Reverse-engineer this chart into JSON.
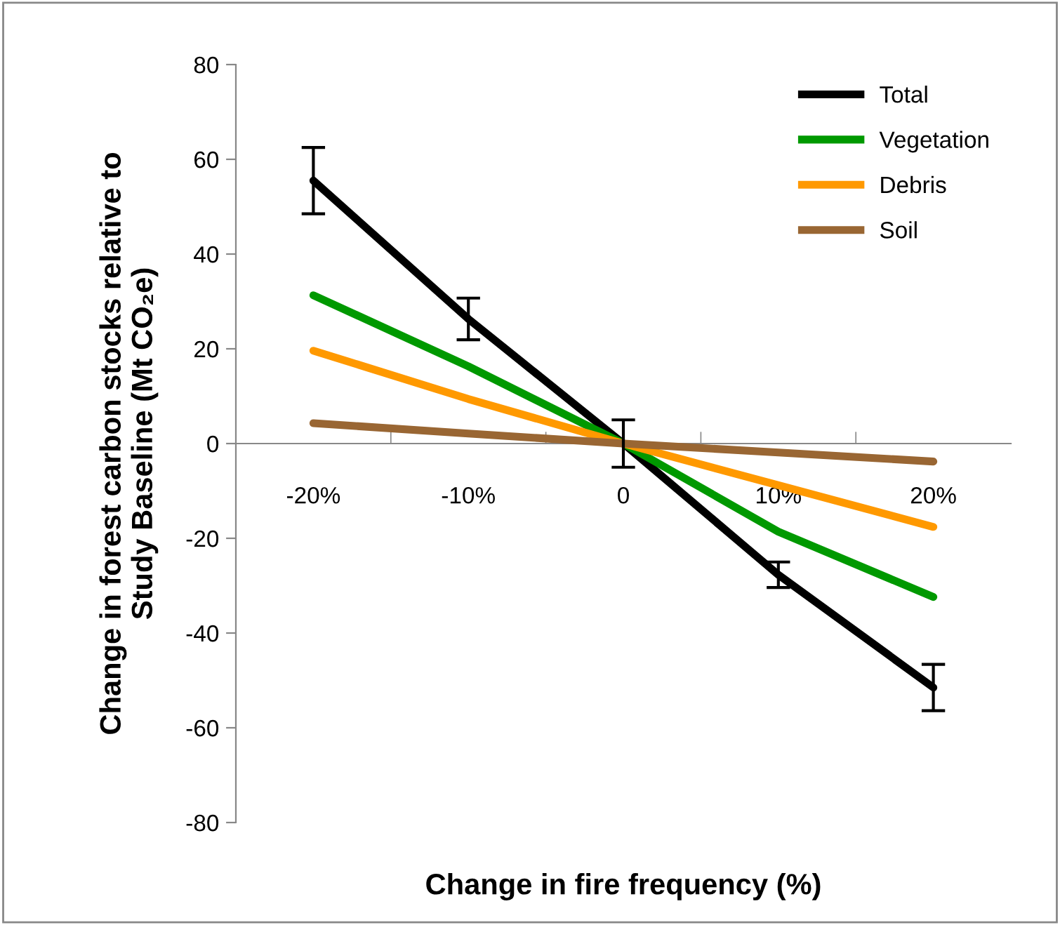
{
  "chart_data": {
    "type": "line",
    "xlabel": "Change in fire frequency (%)",
    "ylabel": "Change in forest carbon stocks relative to\nStudy Baseline (Mt CO₂e)",
    "categories": [
      "-20%",
      "-10%",
      "0",
      "10%",
      "20%"
    ],
    "series": [
      {
        "name": "Total",
        "color": "#000000",
        "values": [
          55.5,
          26.3,
          0,
          -27.7,
          -51.5
        ],
        "errors": [
          7,
          4.4,
          5,
          2.7,
          4.9
        ]
      },
      {
        "name": "Vegetation",
        "color": "#009900",
        "values": [
          31.3,
          16.3,
          0,
          -18.6,
          -32.4
        ]
      },
      {
        "name": "Debris",
        "color": "#ff9900",
        "values": [
          19.6,
          9.4,
          0,
          -8.8,
          -17.6
        ]
      },
      {
        "name": "Soil",
        "color": "#996633",
        "values": [
          4.3,
          2.1,
          0,
          -1.9,
          -3.8
        ]
      }
    ],
    "ylim": [
      -80,
      80
    ],
    "yticks": [
      -80,
      -60,
      -40,
      -20,
      0,
      20,
      40,
      60,
      80
    ],
    "grid": false,
    "legend": "top right",
    "marker": "none",
    "line_style": "solid"
  }
}
